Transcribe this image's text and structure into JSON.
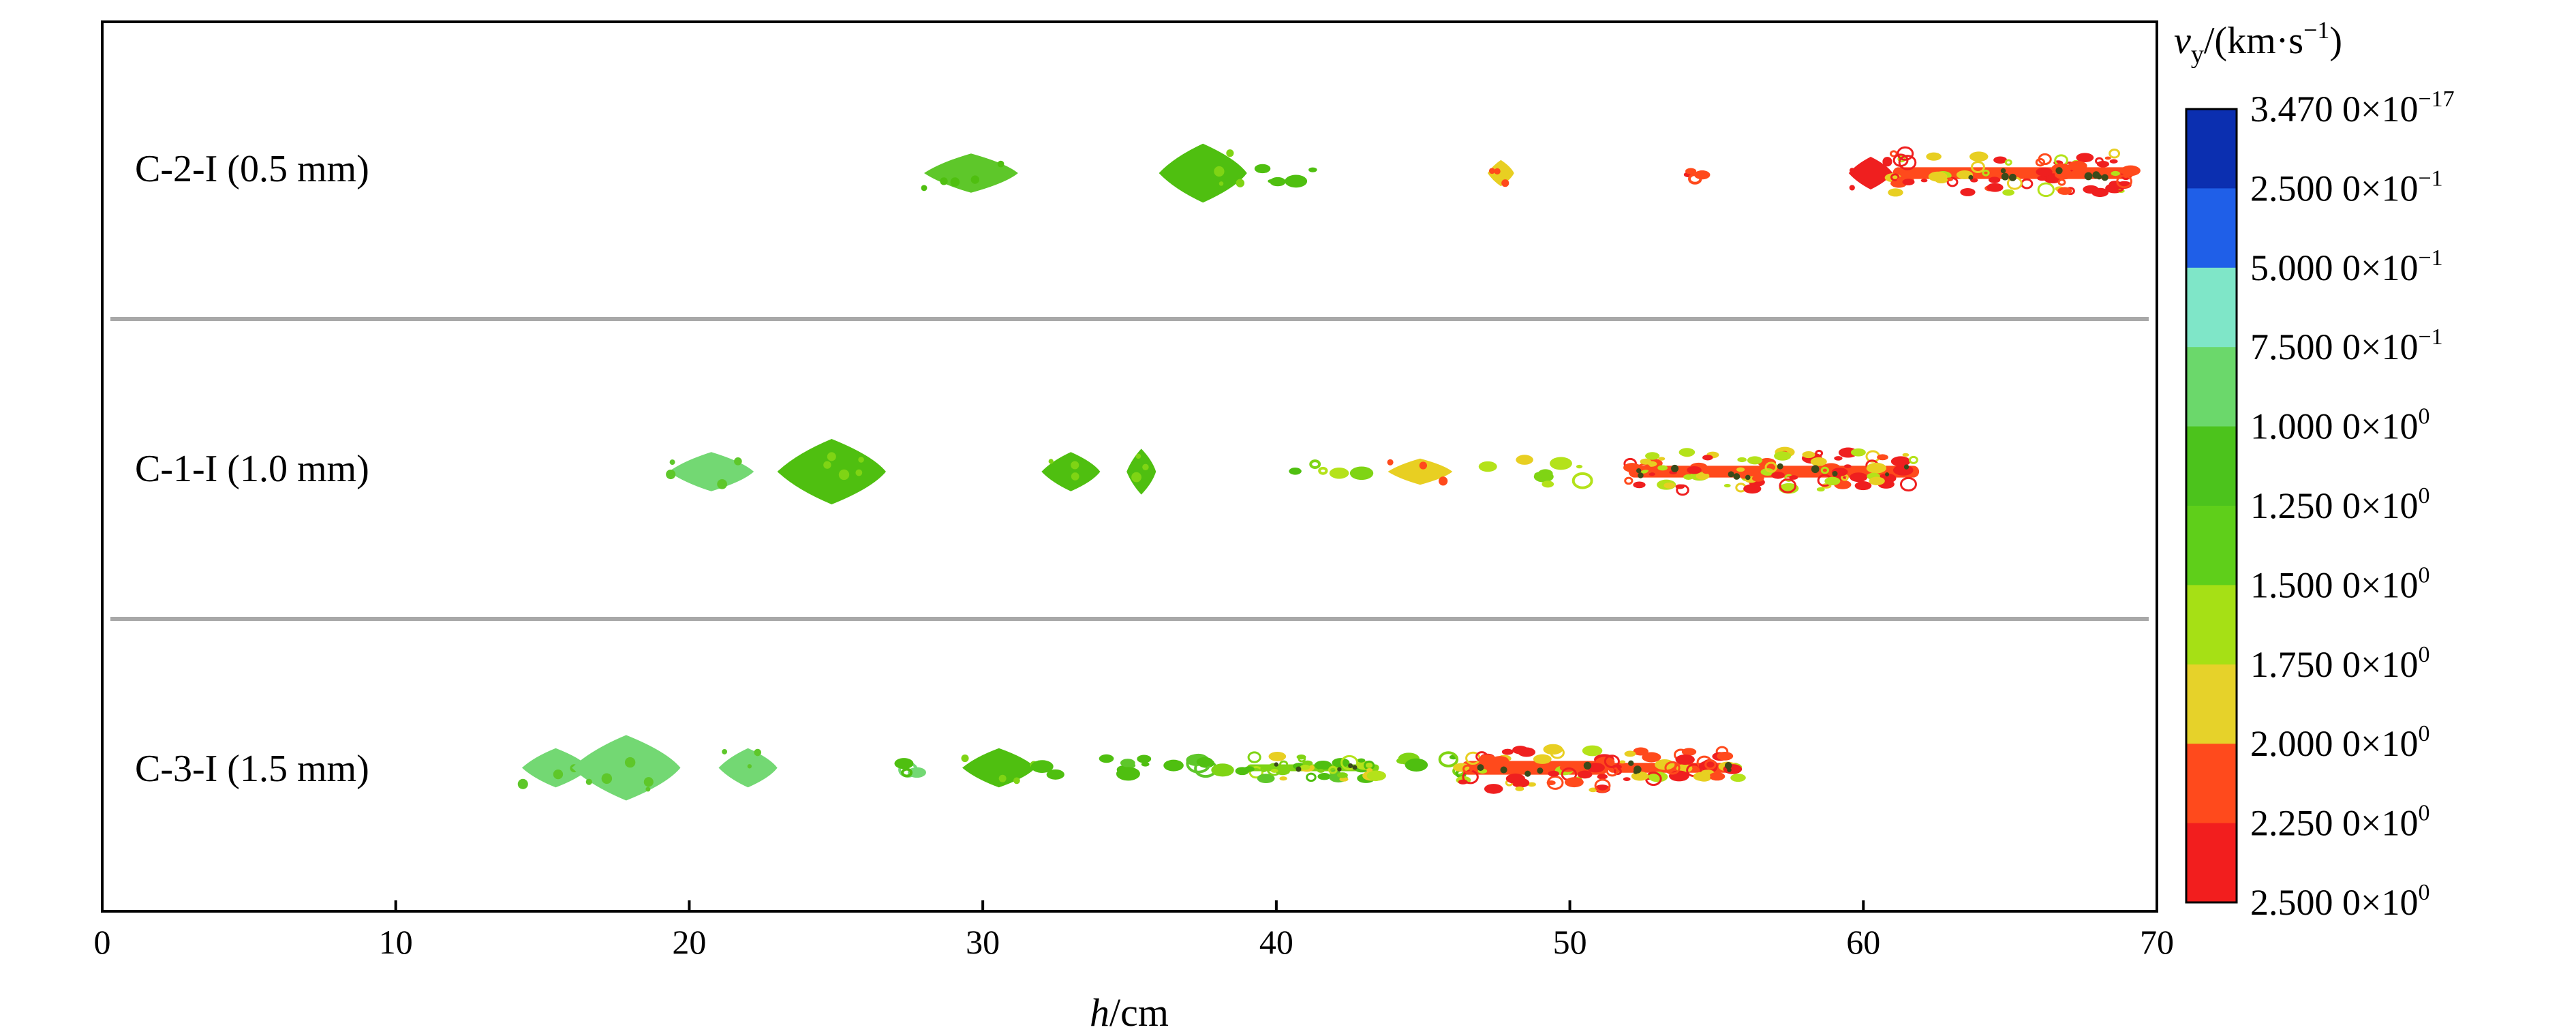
{
  "chart_data": {
    "type": "scatter",
    "xlabel_var": "h",
    "xlabel_unit": "/cm",
    "xlim": [
      0,
      70
    ],
    "xticks": [
      "0",
      "10",
      "20",
      "30",
      "40",
      "50",
      "60",
      "70"
    ],
    "colorbar": {
      "title_var": "v",
      "title_sub": "y",
      "title_unit": "/(km·s",
      "title_exp": "−1",
      "title_close": ")",
      "colors": [
        "#0b2fb0",
        "#1f5fe8",
        "#7fe6c8",
        "#6bd86b",
        "#4cc31c",
        "#5fcf1a",
        "#a6e015",
        "#e6d22a",
        "#ff4a1c",
        "#f21e1e"
      ],
      "labels": [
        {
          "mant": "3.470 0×10",
          "exp": "−17"
        },
        {
          "mant": "2.500 0×10",
          "exp": "−1"
        },
        {
          "mant": "5.000 0×10",
          "exp": "−1"
        },
        {
          "mant": "7.500 0×10",
          "exp": "−1"
        },
        {
          "mant": "1.000 0×10",
          "exp": "0"
        },
        {
          "mant": "1.250 0×10",
          "exp": "0"
        },
        {
          "mant": "1.500 0×10",
          "exp": "0"
        },
        {
          "mant": "1.750 0×10",
          "exp": "0"
        },
        {
          "mant": "2.000 0×10",
          "exp": "0"
        },
        {
          "mant": "2.250 0×10",
          "exp": "0"
        },
        {
          "mant": "2.500 0×10",
          "exp": "0"
        }
      ]
    },
    "panels": [
      {
        "label": "C-2-I (0.5 mm)",
        "fragments": [
          {
            "x0": 28.0,
            "x1": 31.2,
            "vy": 1.0,
            "w": 0.6,
            "kind": "blob"
          },
          {
            "x0": 36.0,
            "x1": 39.0,
            "vy": 1.25,
            "w": 0.9,
            "kind": "blob"
          },
          {
            "x0": 39.4,
            "x1": 41.6,
            "vy": 1.25,
            "w": 0.3,
            "kind": "dots"
          },
          {
            "x0": 47.2,
            "x1": 48.1,
            "vy": 2.0,
            "w": 0.4,
            "kind": "blob"
          },
          {
            "x0": 53.3,
            "x1": 54.7,
            "vy": 2.25,
            "w": 0.2,
            "kind": "dots"
          },
          {
            "x0": 59.5,
            "x1": 61.0,
            "vy": 2.5,
            "w": 0.5,
            "kind": "blob"
          },
          {
            "x0": 61.0,
            "x1": 69.2,
            "vy": 2.25,
            "w": 0.6,
            "kind": "stream"
          }
        ]
      },
      {
        "label": "C-1-I (1.0 mm)",
        "fragments": [
          {
            "x0": 19.3,
            "x1": 22.2,
            "vy": 0.75,
            "w": 0.6,
            "kind": "blob"
          },
          {
            "x0": 23.0,
            "x1": 26.7,
            "vy": 1.25,
            "w": 1.0,
            "kind": "blob"
          },
          {
            "x0": 32.0,
            "x1": 34.0,
            "vy": 1.25,
            "w": 0.6,
            "kind": "blob"
          },
          {
            "x0": 34.9,
            "x1": 35.9,
            "vy": 1.25,
            "w": 0.7,
            "kind": "blob"
          },
          {
            "x0": 40.5,
            "x1": 43.2,
            "vy": 1.5,
            "w": 0.3,
            "kind": "dots"
          },
          {
            "x0": 43.8,
            "x1": 46.0,
            "vy": 2.0,
            "w": 0.4,
            "kind": "blob"
          },
          {
            "x0": 46.9,
            "x1": 50.5,
            "vy": 1.75,
            "w": 0.4,
            "kind": "dots"
          },
          {
            "x0": 52.0,
            "x1": 61.9,
            "vy": 2.25,
            "w": 0.6,
            "kind": "stream"
          }
        ]
      },
      {
        "label": "C-3-I (1.5 mm)",
        "fragments": [
          {
            "x0": 14.3,
            "x1": 16.6,
            "vy": 0.75,
            "w": 0.6,
            "kind": "blob"
          },
          {
            "x0": 16.0,
            "x1": 19.7,
            "vy": 0.75,
            "w": 1.0,
            "kind": "blob"
          },
          {
            "x0": 21.0,
            "x1": 23.0,
            "vy": 0.75,
            "w": 0.6,
            "kind": "blob"
          },
          {
            "x0": 27.0,
            "x1": 27.8,
            "vy": 1.0,
            "w": 0.15,
            "kind": "dots"
          },
          {
            "x0": 29.3,
            "x1": 31.8,
            "vy": 1.25,
            "w": 0.6,
            "kind": "blob"
          },
          {
            "x0": 32.0,
            "x1": 39.0,
            "vy": 1.25,
            "w": 0.3,
            "kind": "dots"
          },
          {
            "x0": 39.0,
            "x1": 43.5,
            "vy": 1.5,
            "w": 0.35,
            "kind": "stream"
          },
          {
            "x0": 44.2,
            "x1": 47.0,
            "vy": 1.5,
            "w": 0.4,
            "kind": "dots"
          },
          {
            "x0": 46.3,
            "x1": 51.3,
            "vy": 2.25,
            "w": 0.7,
            "kind": "stream"
          },
          {
            "x0": 51.3,
            "x1": 55.8,
            "vy": 2.25,
            "w": 0.5,
            "kind": "stream"
          }
        ]
      }
    ]
  }
}
